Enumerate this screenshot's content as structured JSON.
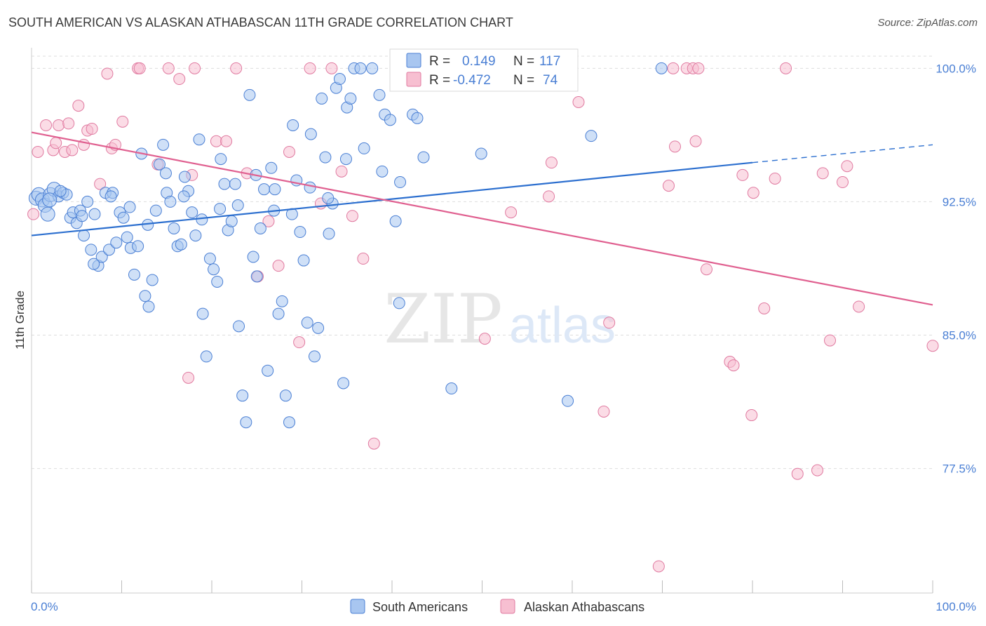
{
  "header": {
    "title": "SOUTH AMERICAN VS ALASKAN ATHABASCAN 11TH GRADE CORRELATION CHART",
    "source": "Source: ZipAtlas.com"
  },
  "watermark": {
    "zip": "ZIP",
    "atlas": "atlas"
  },
  "legend_box": {
    "rows": [
      {
        "r_label": "R =",
        "r_value": "0.149",
        "n_label": "N =",
        "n_value": "117"
      },
      {
        "r_label": "R =",
        "r_value": "-0.472",
        "n_label": "N =",
        "n_value": "74"
      }
    ]
  },
  "colors": {
    "blue": "#4a7fd4",
    "blue_fill": "#a8c6f0",
    "blue_line": "#2c6fcf",
    "pink": "#e07aa0",
    "pink_fill": "#f7bfd1",
    "pink_line": "#e06090",
    "grid": "#dddddd"
  },
  "chart_data": {
    "type": "scatter",
    "xlabel": "",
    "ylabel": "11th Grade",
    "xlim": [
      0,
      100
    ],
    "ylim": [
      70.5,
      101
    ],
    "x_tick_labels": [
      "0.0%",
      "100.0%"
    ],
    "y_ticks": [
      77.5,
      85.0,
      92.5,
      100.0
    ],
    "y_tick_labels": [
      "77.5%",
      "85.0%",
      "92.5%",
      "100.0%"
    ],
    "legend_placement": "bottom",
    "series": [
      {
        "name": "South Americans",
        "color": "#4a7fd4",
        "trend": {
          "x": [
            0,
            80
          ],
          "y": [
            90.6,
            94.7
          ],
          "dashed_extension_to": [
            100,
            95.7
          ]
        },
        "points": [
          [
            0.5,
            92.7
          ],
          [
            0.8,
            92.9
          ],
          [
            1.2,
            92.6
          ],
          [
            1.5,
            92.3
          ],
          [
            1.8,
            91.8
          ],
          [
            2.1,
            92.9
          ],
          [
            2.5,
            93.2
          ],
          [
            3.0,
            92.8
          ],
          [
            3.5,
            93.0
          ],
          [
            3.9,
            92.9
          ],
          [
            4.3,
            91.6
          ],
          [
            4.6,
            91.9
          ],
          [
            5.0,
            91.3
          ],
          [
            5.4,
            92.0
          ],
          [
            5.8,
            90.6
          ],
          [
            6.2,
            92.5
          ],
          [
            6.6,
            89.8
          ],
          [
            7.0,
            91.8
          ],
          [
            7.4,
            88.9
          ],
          [
            7.8,
            89.4
          ],
          [
            8.2,
            93.0
          ],
          [
            8.6,
            89.8
          ],
          [
            9.0,
            93.0
          ],
          [
            9.4,
            90.2
          ],
          [
            9.8,
            91.9
          ],
          [
            10.2,
            91.6
          ],
          [
            10.6,
            90.5
          ],
          [
            11.0,
            89.9
          ],
          [
            11.4,
            88.4
          ],
          [
            11.8,
            90.0
          ],
          [
            12.2,
            95.2
          ],
          [
            12.6,
            87.2
          ],
          [
            13.0,
            86.6
          ],
          [
            13.4,
            88.1
          ],
          [
            13.8,
            92.0
          ],
          [
            14.2,
            94.6
          ],
          [
            14.6,
            95.7
          ],
          [
            15.0,
            93.0
          ],
          [
            15.4,
            92.5
          ],
          [
            15.8,
            91.0
          ],
          [
            16.2,
            90.0
          ],
          [
            16.6,
            90.1
          ],
          [
            17.0,
            93.9
          ],
          [
            17.4,
            93.1
          ],
          [
            17.8,
            91.9
          ],
          [
            18.2,
            90.6
          ],
          [
            18.6,
            96.0
          ],
          [
            19.0,
            86.2
          ],
          [
            19.4,
            83.8
          ],
          [
            19.8,
            89.3
          ],
          [
            20.2,
            88.7
          ],
          [
            20.6,
            88.0
          ],
          [
            21.0,
            94.9
          ],
          [
            21.4,
            93.5
          ],
          [
            21.8,
            90.9
          ],
          [
            22.2,
            91.4
          ],
          [
            22.6,
            93.5
          ],
          [
            23.0,
            85.5
          ],
          [
            23.4,
            81.6
          ],
          [
            23.8,
            80.1
          ],
          [
            24.2,
            98.5
          ],
          [
            24.6,
            89.4
          ],
          [
            25.0,
            88.3
          ],
          [
            25.4,
            91.0
          ],
          [
            25.8,
            93.2
          ],
          [
            26.2,
            83.0
          ],
          [
            26.6,
            94.4
          ],
          [
            27.0,
            93.2
          ],
          [
            27.4,
            86.2
          ],
          [
            27.8,
            86.9
          ],
          [
            28.2,
            81.6
          ],
          [
            28.6,
            80.1
          ],
          [
            29.0,
            96.8
          ],
          [
            29.4,
            93.7
          ],
          [
            29.8,
            90.8
          ],
          [
            30.2,
            89.2
          ],
          [
            30.6,
            85.7
          ],
          [
            31.0,
            96.3
          ],
          [
            31.4,
            83.8
          ],
          [
            31.8,
            85.4
          ],
          [
            32.2,
            98.3
          ],
          [
            32.6,
            95.0
          ],
          [
            33.0,
            90.7
          ],
          [
            33.4,
            92.4
          ],
          [
            33.8,
            98.9
          ],
          [
            34.2,
            99.4
          ],
          [
            34.6,
            82.3
          ],
          [
            35.0,
            97.8
          ],
          [
            35.4,
            98.3
          ],
          [
            35.8,
            100.0
          ],
          [
            36.5,
            100.0
          ],
          [
            37.8,
            100.0
          ],
          [
            38.6,
            98.5
          ],
          [
            39.2,
            97.4
          ],
          [
            39.8,
            97.1
          ],
          [
            40.4,
            91.4
          ],
          [
            40.8,
            86.8
          ],
          [
            41.2,
            100.0
          ],
          [
            42.3,
            97.4
          ],
          [
            42.8,
            97.2
          ],
          [
            43.5,
            95.0
          ],
          [
            46.6,
            82.0
          ],
          [
            49.9,
            95.2
          ],
          [
            59.5,
            81.3
          ],
          [
            62.1,
            96.2
          ],
          [
            69.9,
            100.0
          ],
          [
            2.0,
            92.6
          ],
          [
            3.2,
            93.1
          ],
          [
            5.6,
            91.7
          ],
          [
            6.9,
            89.0
          ],
          [
            8.8,
            92.8
          ],
          [
            10.9,
            92.2
          ],
          [
            12.9,
            91.2
          ],
          [
            14.9,
            94.1
          ],
          [
            16.9,
            92.8
          ],
          [
            18.9,
            91.5
          ],
          [
            20.9,
            92.1
          ],
          [
            22.9,
            92.3
          ],
          [
            24.9,
            94.0
          ],
          [
            26.9,
            92.0
          ],
          [
            28.9,
            91.8
          ],
          [
            30.9,
            93.3
          ],
          [
            32.9,
            92.7
          ],
          [
            34.9,
            94.9
          ],
          [
            36.9,
            95.5
          ],
          [
            38.9,
            94.2
          ],
          [
            40.9,
            93.6
          ]
        ]
      },
      {
        "name": "Alaskan Athabascans",
        "color": "#e07aa0",
        "trend": {
          "x": [
            0,
            100
          ],
          "y": [
            96.4,
            86.7
          ]
        },
        "points": [
          [
            0.2,
            91.8
          ],
          [
            0.7,
            95.3
          ],
          [
            1.6,
            96.8
          ],
          [
            2.4,
            95.4
          ],
          [
            2.7,
            95.8
          ],
          [
            3.0,
            96.8
          ],
          [
            3.7,
            95.3
          ],
          [
            4.1,
            96.9
          ],
          [
            4.5,
            95.4
          ],
          [
            5.2,
            97.9
          ],
          [
            5.8,
            95.7
          ],
          [
            6.2,
            96.5
          ],
          [
            6.7,
            96.6
          ],
          [
            7.6,
            93.5
          ],
          [
            8.4,
            99.7
          ],
          [
            8.9,
            95.5
          ],
          [
            9.3,
            95.7
          ],
          [
            10.1,
            97.0
          ],
          [
            11.8,
            100.0
          ],
          [
            12.0,
            100.0
          ],
          [
            14.0,
            94.6
          ],
          [
            15.2,
            100.0
          ],
          [
            16.4,
            99.4
          ],
          [
            17.4,
            82.6
          ],
          [
            17.8,
            94.0
          ],
          [
            18.1,
            100.0
          ],
          [
            20.5,
            95.9
          ],
          [
            21.6,
            95.9
          ],
          [
            22.7,
            100.0
          ],
          [
            23.9,
            94.1
          ],
          [
            25.1,
            88.3
          ],
          [
            26.3,
            91.4
          ],
          [
            27.4,
            88.9
          ],
          [
            28.6,
            95.3
          ],
          [
            29.7,
            84.6
          ],
          [
            30.9,
            100.0
          ],
          [
            32.1,
            92.4
          ],
          [
            33.3,
            100.0
          ],
          [
            34.4,
            94.2
          ],
          [
            35.6,
            91.7
          ],
          [
            36.8,
            89.3
          ],
          [
            38.0,
            78.9
          ],
          [
            50.3,
            84.8
          ],
          [
            53.2,
            91.9
          ],
          [
            57.4,
            92.8
          ],
          [
            57.7,
            94.7
          ],
          [
            60.7,
            98.1
          ],
          [
            63.5,
            80.7
          ],
          [
            64.1,
            85.7
          ],
          [
            69.6,
            72.0
          ],
          [
            70.7,
            93.4
          ],
          [
            71.2,
            100.0
          ],
          [
            71.4,
            95.6
          ],
          [
            72.7,
            100.0
          ],
          [
            73.4,
            100.0
          ],
          [
            73.7,
            95.9
          ],
          [
            74.0,
            100.0
          ],
          [
            74.9,
            88.7
          ],
          [
            77.5,
            83.5
          ],
          [
            77.9,
            83.3
          ],
          [
            78.9,
            94.0
          ],
          [
            79.9,
            80.5
          ],
          [
            80.1,
            93.0
          ],
          [
            81.3,
            86.5
          ],
          [
            82.5,
            93.8
          ],
          [
            83.7,
            100.0
          ],
          [
            85.0,
            77.2
          ],
          [
            87.2,
            77.4
          ],
          [
            87.8,
            94.1
          ],
          [
            88.6,
            84.7
          ],
          [
            90.0,
            93.6
          ],
          [
            90.5,
            94.5
          ],
          [
            91.8,
            86.6
          ],
          [
            100.0,
            84.4
          ]
        ]
      }
    ]
  },
  "bottom_legend": {
    "items": [
      {
        "label": "South Americans"
      },
      {
        "label": "Alaskan Athabascans"
      }
    ]
  }
}
